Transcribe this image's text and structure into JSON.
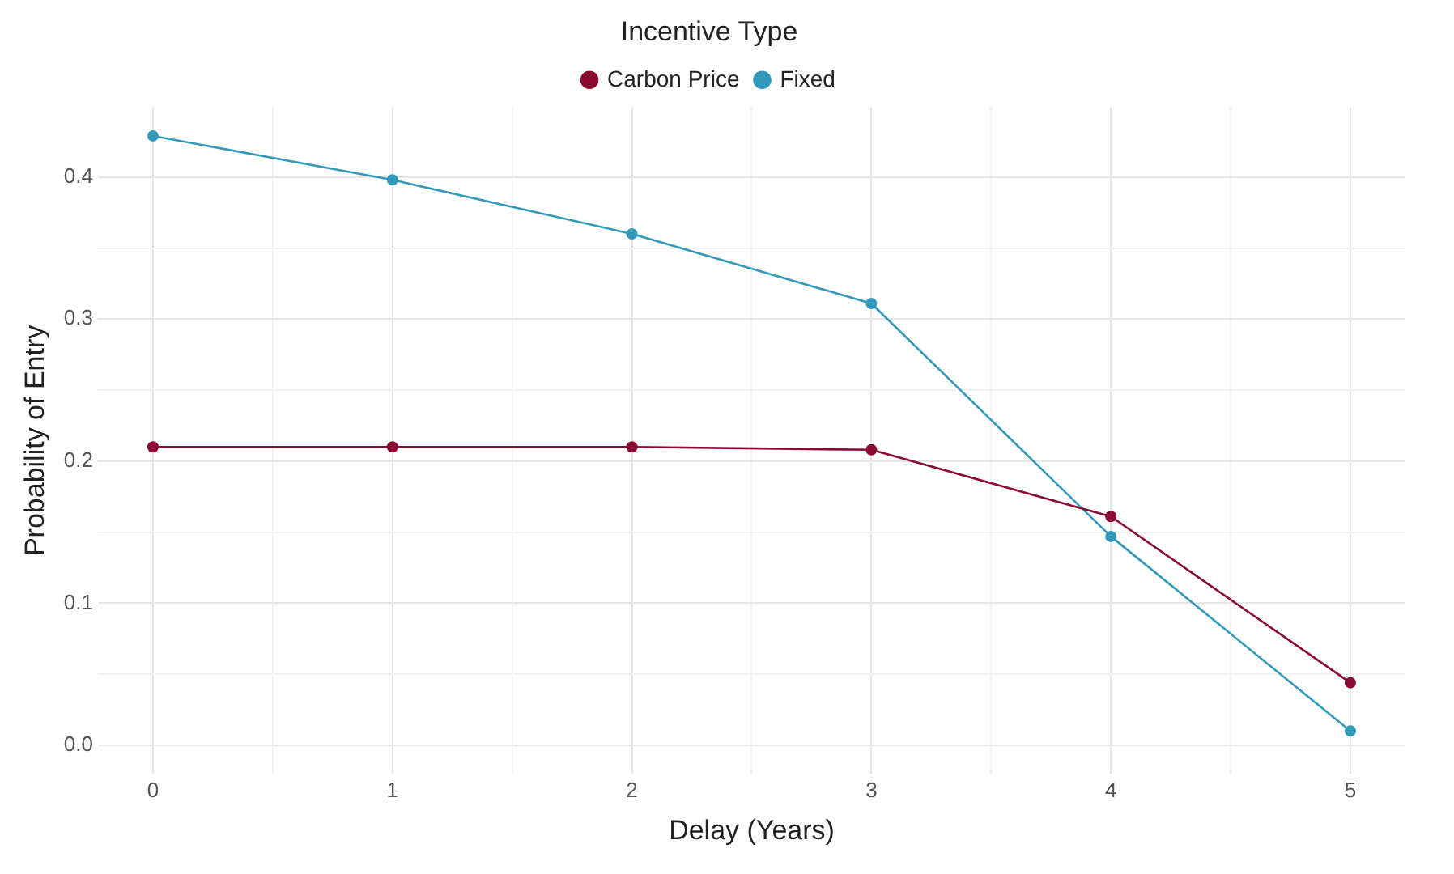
{
  "chart_data": {
    "type": "line",
    "xlabel": "Delay (Years)",
    "ylabel": "Probability of Entry",
    "legend_title": "Incentive Type",
    "legend": "top",
    "grid": true,
    "marker": "circle",
    "line_style": "solid",
    "x": [
      0,
      1,
      2,
      3,
      4,
      5
    ],
    "xlim": [
      -0.23,
      5.23
    ],
    "xticks": [
      0,
      {
        "value": 0.5,
        "label": null
      },
      1,
      {
        "value": 1.5,
        "label": null
      },
      2,
      {
        "value": 2.5,
        "label": null
      },
      3,
      {
        "value": 3.5,
        "label": null
      },
      4,
      {
        "value": 4.5,
        "label": null
      },
      5
    ],
    "ylim": [
      -0.02,
      0.449
    ],
    "yticks": [
      "0.0",
      {
        "value": 0.05,
        "label": null
      },
      {
        "value": 0.1,
        "label": "0.1"
      },
      {
        "value": 0.15,
        "label": null
      },
      {
        "value": 0.2,
        "label": "0.2"
      },
      {
        "value": 0.25,
        "label": null
      },
      {
        "value": 0.3,
        "label": "0.3"
      },
      {
        "value": 0.35,
        "label": null
      },
      {
        "value": 0.4,
        "label": "0.4"
      }
    ],
    "series": [
      {
        "name": "Carbon Price",
        "color": "#8b0a32",
        "values": [
          0.21,
          0.21,
          0.21,
          0.208,
          0.161,
          0.044
        ]
      },
      {
        "name": "Fixed",
        "color": "#3399bb",
        "values": [
          0.429,
          0.398,
          0.36,
          0.311,
          0.147,
          0.01
        ]
      }
    ]
  }
}
